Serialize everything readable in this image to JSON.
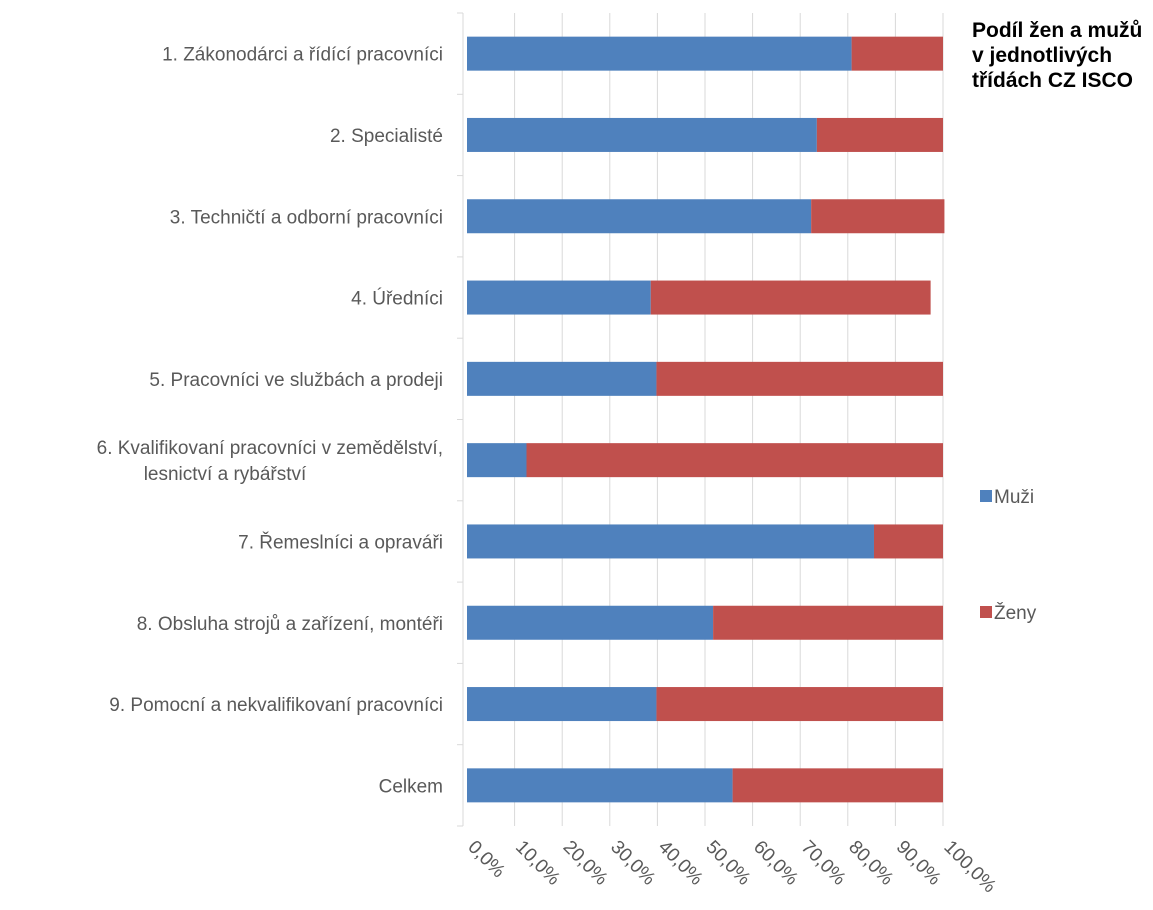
{
  "chart_data": {
    "type": "bar",
    "orientation": "horizontal",
    "stacked": "percent",
    "title": "Podíl žen a mužů v jednotlivých třídách CZ ISCO",
    "categories": [
      "1. Zákonodárci a řídící pracovníci",
      "2. Specialisté",
      "3. Techničtí a odborní pracovníci",
      "4. Úředníci",
      "5. Pracovníci ve službách a prodeji",
      "6. Kvalifikovaní pracovníci v zemědělství, lesnictví a rybářství",
      "7. Řemeslníci a opraváři",
      "8. Obsluha strojů a zařízení, montéři",
      "9. Pomocní a nekvalifikovaní pracovníci",
      "Celkem"
    ],
    "category_lines": [
      [
        "1. Zákonodárci a řídící pracovníci"
      ],
      [
        "2. Specialisté"
      ],
      [
        "3. Techničtí a odborní pracovníci"
      ],
      [
        "4. Úředníci"
      ],
      [
        "5. Pracovníci ve službách a prodeji"
      ],
      [
        "6. Kvalifikovaní pracovníci v zemědělství,",
        "lesnictví a rybářství"
      ],
      [
        "7. Řemeslníci a opraváři"
      ],
      [
        "8. Obsluha strojů a zařízení, montéři"
      ],
      [
        "9. Pomocní a nekvalifikovaní pracovníci"
      ],
      [
        "Celkem"
      ]
    ],
    "series": [
      {
        "name": "Muži",
        "color": "#4F81BD",
        "values": [
          80.8,
          73.5,
          72.3,
          38.6,
          39.8,
          12.5,
          85.5,
          51.7,
          39.8,
          55.8
        ]
      },
      {
        "name": "Ženy",
        "color": "#C0504D",
        "values": [
          19.2,
          26.5,
          28.0,
          58.8,
          60.2,
          87.5,
          14.5,
          48.3,
          60.2,
          44.2
        ]
      }
    ],
    "xlim": [
      0,
      100
    ],
    "xticks": [
      0,
      10,
      20,
      30,
      40,
      50,
      60,
      70,
      80,
      90,
      100
    ],
    "xtick_labels": [
      "0,0%",
      "10,0%",
      "20,0%",
      "30,0%",
      "40,0%",
      "50,0%",
      "60,0%",
      "70,0%",
      "80,0%",
      "90,0%",
      "100,0%"
    ],
    "grid": true,
    "legend_position": "right"
  }
}
